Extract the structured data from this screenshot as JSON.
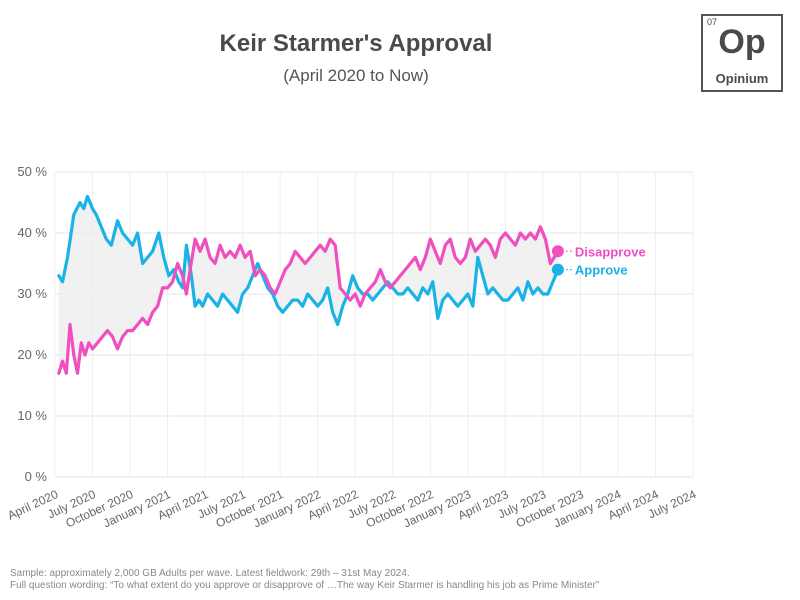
{
  "header": {
    "title": "Keir Starmer's Approval",
    "subtitle": "(April 2020 to Now)"
  },
  "logo": {
    "number": "07",
    "symbol": "Op",
    "name": "Opinium"
  },
  "footer": {
    "line1": "Sample: approximately 2,000 GB Adults per wave. Latest fieldwork: 29th – 31st May 2024.",
    "line2": "Full question wording: “To what extent do you approve or disapprove of …The way Keir Starmer is handling his job as Prime Minister”"
  },
  "chart_data": {
    "type": "line",
    "title": "Keir Starmer's Approval",
    "subtitle": "(April 2020 to Now)",
    "x_ticks": [
      "April 2020",
      "July 2020",
      "October 2020",
      "January 2021",
      "April 2021",
      "July 2021",
      "October 2021",
      "January 2022",
      "April 2022",
      "July 2022",
      "October 2022",
      "January 2023",
      "April 2023",
      "July 2023",
      "October 2023",
      "January 2024",
      "April 2024",
      "July 2024"
    ],
    "y_ticks": [
      "0 %",
      "10 %",
      "20 %",
      "30 %",
      "40 %",
      "50 %"
    ],
    "ylim": [
      0,
      50
    ],
    "grid": true,
    "shaded_gap": true,
    "legend_placement": "right end labels",
    "series": [
      {
        "name": "Approve",
        "color": "#1ab3e6",
        "points": [
          [
            0.3,
            33
          ],
          [
            0.6,
            32
          ],
          [
            1,
            36
          ],
          [
            1.5,
            43
          ],
          [
            2,
            45
          ],
          [
            2.3,
            44
          ],
          [
            2.6,
            46
          ],
          [
            3,
            44
          ],
          [
            3.3,
            43
          ],
          [
            3.7,
            41
          ],
          [
            4.1,
            39
          ],
          [
            4.5,
            38
          ],
          [
            5,
            42
          ],
          [
            5.4,
            40
          ],
          [
            5.8,
            39
          ],
          [
            6.2,
            38
          ],
          [
            6.6,
            40
          ],
          [
            7,
            35
          ],
          [
            7.4,
            36
          ],
          [
            7.8,
            37
          ],
          [
            8.3,
            40
          ],
          [
            8.7,
            36
          ],
          [
            9.1,
            33
          ],
          [
            9.5,
            34
          ],
          [
            9.9,
            32
          ],
          [
            10.2,
            31
          ],
          [
            10.5,
            38
          ],
          [
            10.9,
            33
          ],
          [
            11.2,
            28
          ],
          [
            11.5,
            29
          ],
          [
            11.8,
            28
          ],
          [
            12.2,
            30
          ],
          [
            12.6,
            29
          ],
          [
            13,
            28
          ],
          [
            13.4,
            30
          ],
          [
            13.8,
            29
          ],
          [
            14.2,
            28
          ],
          [
            14.6,
            27
          ],
          [
            15,
            30
          ],
          [
            15.4,
            31
          ],
          [
            15.8,
            33
          ],
          [
            16.2,
            35
          ],
          [
            16.6,
            33
          ],
          [
            17,
            31
          ],
          [
            17.4,
            30
          ],
          [
            17.8,
            28
          ],
          [
            18.2,
            27
          ],
          [
            18.6,
            28
          ],
          [
            19,
            29
          ],
          [
            19.4,
            29
          ],
          [
            19.8,
            28
          ],
          [
            20.2,
            30
          ],
          [
            20.6,
            29
          ],
          [
            21,
            28
          ],
          [
            21.4,
            29
          ],
          [
            21.8,
            31
          ],
          [
            22.2,
            27
          ],
          [
            22.6,
            25
          ],
          [
            23,
            28
          ],
          [
            23.4,
            30
          ],
          [
            23.8,
            33
          ],
          [
            24.2,
            31
          ],
          [
            24.6,
            30
          ],
          [
            25,
            30
          ],
          [
            25.4,
            29
          ],
          [
            25.8,
            30
          ],
          [
            26.2,
            31
          ],
          [
            26.6,
            32
          ],
          [
            27,
            31
          ],
          [
            27.4,
            30
          ],
          [
            27.8,
            30
          ],
          [
            28.2,
            31
          ],
          [
            28.6,
            30
          ],
          [
            29,
            29
          ],
          [
            29.4,
            31
          ],
          [
            29.8,
            30
          ],
          [
            30.2,
            32
          ],
          [
            30.6,
            26
          ],
          [
            31,
            29
          ],
          [
            31.4,
            30
          ],
          [
            31.8,
            29
          ],
          [
            32.2,
            28
          ],
          [
            32.6,
            29
          ],
          [
            33,
            30
          ],
          [
            33.4,
            28
          ],
          [
            33.8,
            36
          ],
          [
            34.2,
            33
          ],
          [
            34.6,
            30
          ],
          [
            35,
            31
          ],
          [
            35.4,
            30
          ],
          [
            35.8,
            29
          ],
          [
            36.2,
            29
          ],
          [
            36.6,
            30
          ],
          [
            37,
            31
          ],
          [
            37.4,
            29
          ],
          [
            37.8,
            32
          ],
          [
            38.2,
            30
          ],
          [
            38.6,
            31
          ],
          [
            39,
            30
          ],
          [
            39.4,
            30
          ],
          [
            39.8,
            32
          ],
          [
            40.2,
            34
          ]
        ]
      },
      {
        "name": "Disapprove",
        "color": "#f04fc0",
        "points": [
          [
            0.3,
            17
          ],
          [
            0.6,
            19
          ],
          [
            0.9,
            17
          ],
          [
            1.2,
            25
          ],
          [
            1.5,
            20
          ],
          [
            1.8,
            17
          ],
          [
            2.1,
            22
          ],
          [
            2.4,
            20
          ],
          [
            2.7,
            22
          ],
          [
            3,
            21
          ],
          [
            3.4,
            22
          ],
          [
            3.8,
            23
          ],
          [
            4.2,
            24
          ],
          [
            4.6,
            23
          ],
          [
            5,
            21
          ],
          [
            5.4,
            23
          ],
          [
            5.8,
            24
          ],
          [
            6.2,
            24
          ],
          [
            6.6,
            25
          ],
          [
            7,
            26
          ],
          [
            7.4,
            25
          ],
          [
            7.8,
            27
          ],
          [
            8.2,
            28
          ],
          [
            8.6,
            31
          ],
          [
            9,
            31
          ],
          [
            9.4,
            32
          ],
          [
            9.8,
            35
          ],
          [
            10.2,
            33
          ],
          [
            10.5,
            30
          ],
          [
            10.8,
            34
          ],
          [
            11.2,
            39
          ],
          [
            11.6,
            37
          ],
          [
            12,
            39
          ],
          [
            12.4,
            36
          ],
          [
            12.8,
            35
          ],
          [
            13.2,
            38
          ],
          [
            13.6,
            36
          ],
          [
            14,
            37
          ],
          [
            14.4,
            36
          ],
          [
            14.8,
            38
          ],
          [
            15.2,
            36
          ],
          [
            15.6,
            37
          ],
          [
            16,
            33
          ],
          [
            16.4,
            34
          ],
          [
            16.8,
            33
          ],
          [
            17.2,
            31
          ],
          [
            17.6,
            30
          ],
          [
            18,
            32
          ],
          [
            18.4,
            34
          ],
          [
            18.8,
            35
          ],
          [
            19.2,
            37
          ],
          [
            19.6,
            36
          ],
          [
            20,
            35
          ],
          [
            20.4,
            36
          ],
          [
            20.8,
            37
          ],
          [
            21.2,
            38
          ],
          [
            21.6,
            37
          ],
          [
            22,
            39
          ],
          [
            22.4,
            38
          ],
          [
            22.8,
            31
          ],
          [
            23.2,
            30
          ],
          [
            23.6,
            29
          ],
          [
            24,
            30
          ],
          [
            24.4,
            28
          ],
          [
            24.8,
            30
          ],
          [
            25.2,
            31
          ],
          [
            25.6,
            32
          ],
          [
            26,
            34
          ],
          [
            26.4,
            32
          ],
          [
            26.8,
            31
          ],
          [
            27.2,
            32
          ],
          [
            27.6,
            33
          ],
          [
            28,
            34
          ],
          [
            28.4,
            35
          ],
          [
            28.8,
            36
          ],
          [
            29.2,
            34
          ],
          [
            29.6,
            36
          ],
          [
            30,
            39
          ],
          [
            30.4,
            37
          ],
          [
            30.8,
            35
          ],
          [
            31.2,
            38
          ],
          [
            31.6,
            39
          ],
          [
            32,
            36
          ],
          [
            32.4,
            35
          ],
          [
            32.8,
            36
          ],
          [
            33.2,
            39
          ],
          [
            33.6,
            37
          ],
          [
            34,
            38
          ],
          [
            34.4,
            39
          ],
          [
            34.8,
            38
          ],
          [
            35.2,
            36
          ],
          [
            35.6,
            39
          ],
          [
            36,
            40
          ],
          [
            36.4,
            39
          ],
          [
            36.8,
            38
          ],
          [
            37.2,
            40
          ],
          [
            37.6,
            39
          ],
          [
            38,
            40
          ],
          [
            38.4,
            39
          ],
          [
            38.8,
            41
          ],
          [
            39.2,
            39
          ],
          [
            39.6,
            35
          ],
          [
            40.2,
            37
          ]
        ]
      }
    ]
  }
}
